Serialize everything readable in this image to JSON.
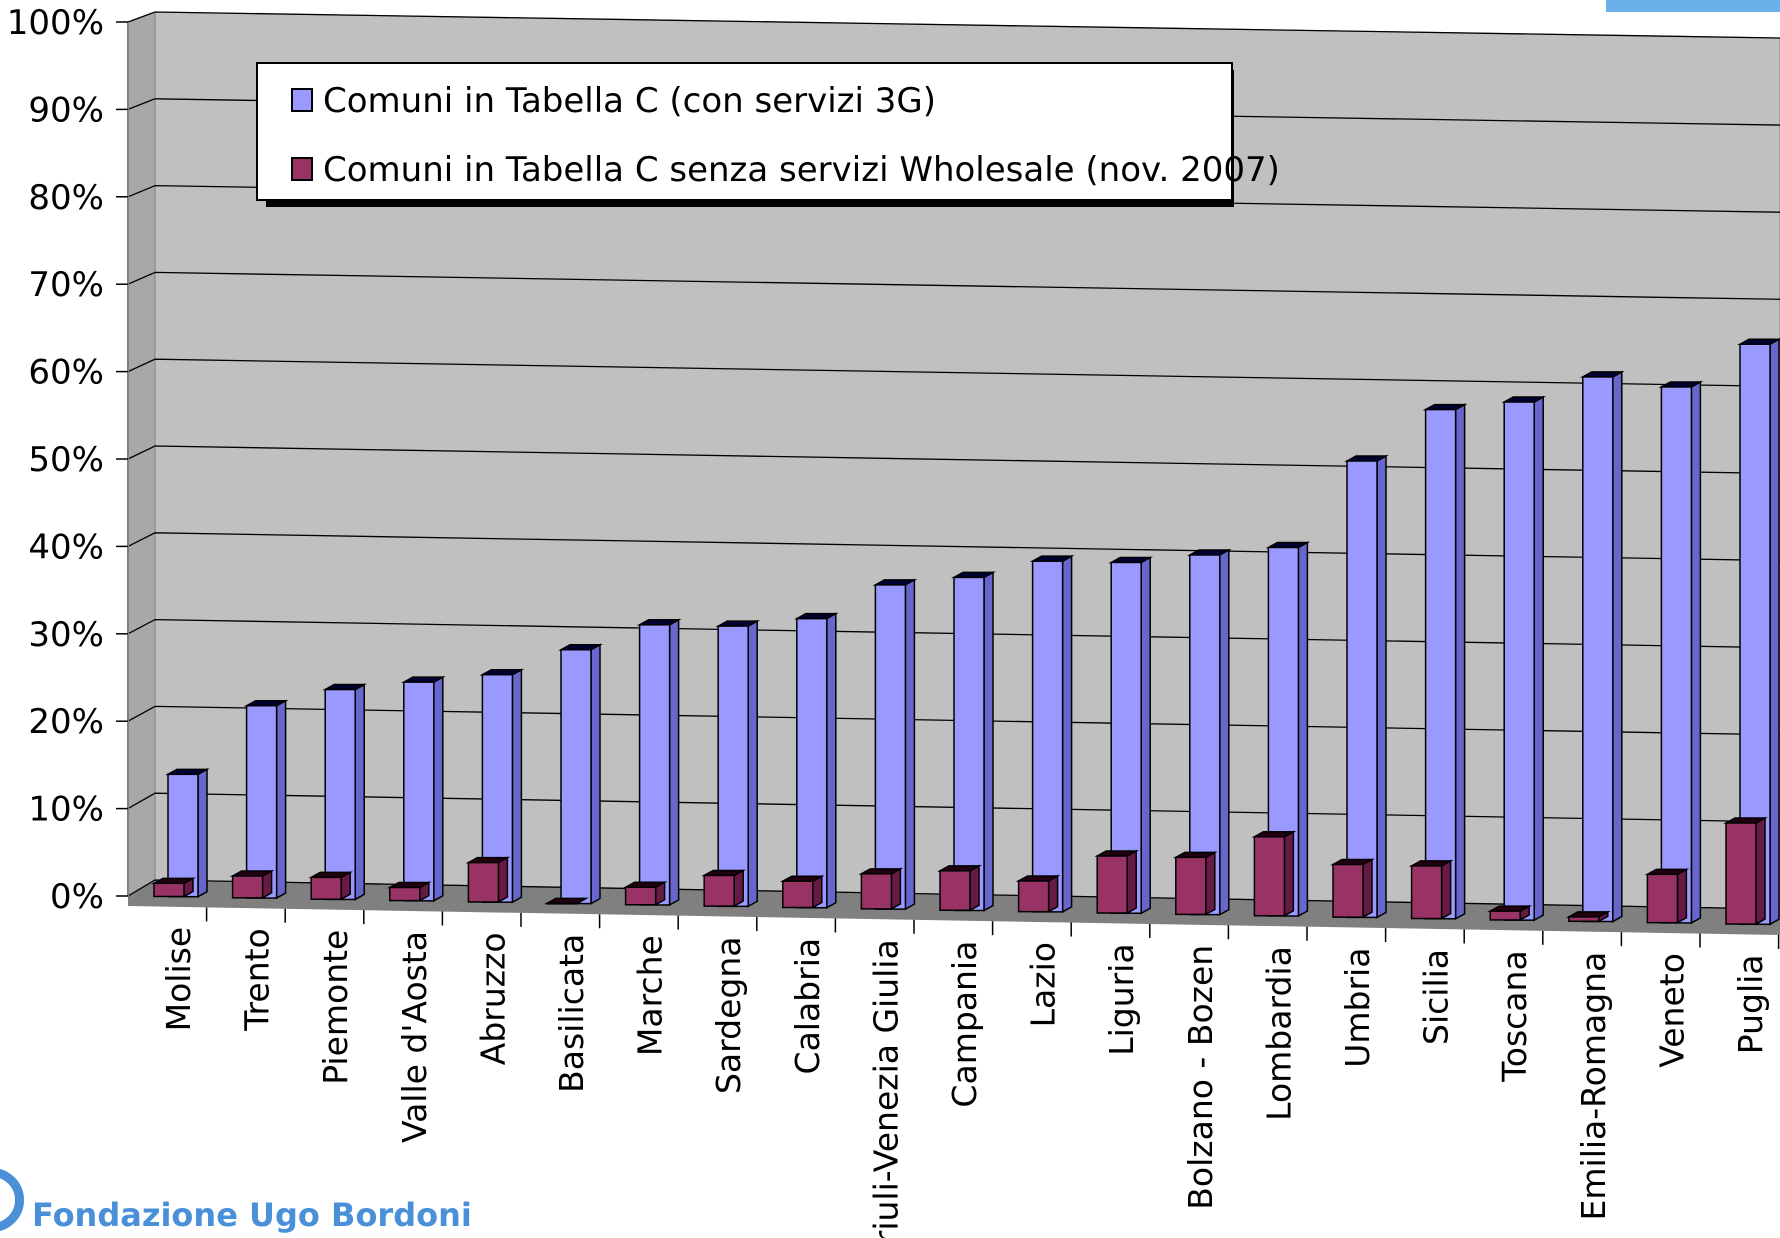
{
  "chart_data": {
    "type": "bar",
    "categories": [
      "Molise",
      "Trento",
      "Piemonte",
      "Valle d'Aosta",
      "Abruzzo",
      "Basilicata",
      "Marche",
      "Sardegna",
      "Calabria",
      "Friuli-Venezia Giulia",
      "Campania",
      "Lazio",
      "Liguria",
      "Bolzano - Bozen",
      "Lombardia",
      "Umbria",
      "Sicilia",
      "Toscana",
      "Emilia-Romagna",
      "Veneto",
      "Puglia"
    ],
    "series": [
      {
        "name": "Comuni in Tabella C (con servizi 3G)",
        "color": "#9999ff",
        "values": [
          14,
          22,
          24,
          25,
          26,
          29,
          32,
          32,
          33,
          37,
          38,
          40,
          40,
          41,
          42,
          52,
          58,
          59,
          62,
          61,
          66
        ]
      },
      {
        "name": "Comuni in Tabella C senza servizi Wholesale (nov. 2007)",
        "color": "#993366",
        "values": [
          1.5,
          2.5,
          2.5,
          1.5,
          4.5,
          0,
          2,
          3.5,
          3,
          4,
          4.5,
          3.5,
          6.5,
          6.5,
          9,
          6,
          6,
          1,
          0.5,
          5.5,
          11.5
        ]
      }
    ],
    "yticks": [
      "0%",
      "10%",
      "20%",
      "30%",
      "40%",
      "50%",
      "60%",
      "70%",
      "80%",
      "90%",
      "100%"
    ],
    "ylim": [
      0,
      100
    ],
    "grid": true,
    "legend_position": "top-left"
  },
  "brand": {
    "text": "Fondazione Ugo Bordoni"
  },
  "colors": {
    "wall": "#c0c0c0",
    "floor": "#808080",
    "brand": "#4a90d9"
  }
}
